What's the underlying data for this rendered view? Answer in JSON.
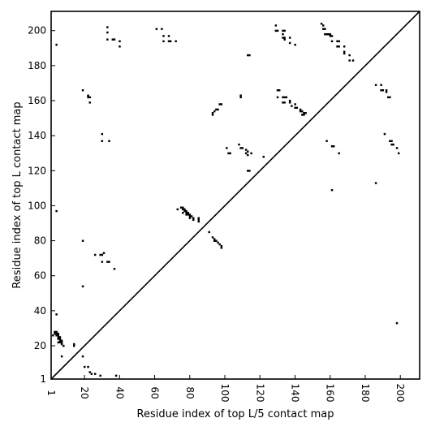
{
  "chart_data": {
    "type": "scatter",
    "title": "",
    "xlabel": "Residue index of top L/5 contact map",
    "ylabel": "Residue index of top L contact map",
    "xlim": [
      1,
      211
    ],
    "ylim": [
      1,
      211
    ],
    "x_ticks": [
      {
        "value": 1,
        "label": "1"
      },
      {
        "value": 20,
        "label": "20"
      },
      {
        "value": 40,
        "label": "40"
      },
      {
        "value": 60,
        "label": "60"
      },
      {
        "value": 80,
        "label": "80"
      },
      {
        "value": 100,
        "label": "100"
      },
      {
        "value": 120,
        "label": "120"
      },
      {
        "value": 140,
        "label": "140"
      },
      {
        "value": 160,
        "label": "160"
      },
      {
        "value": 180,
        "label": "180"
      },
      {
        "value": 200,
        "label": "200"
      }
    ],
    "y_ticks": [
      {
        "value": 1,
        "label": "1"
      },
      {
        "value": 20,
        "label": "20"
      },
      {
        "value": 40,
        "label": "40"
      },
      {
        "value": 60,
        "label": "60"
      },
      {
        "value": 80,
        "label": "80"
      },
      {
        "value": 100,
        "label": "100"
      },
      {
        "value": 120,
        "label": "120"
      },
      {
        "value": 140,
        "label": "140"
      },
      {
        "value": 160,
        "label": "160"
      },
      {
        "value": 180,
        "label": "180"
      },
      {
        "value": 200,
        "label": "200"
      }
    ],
    "grid": false,
    "diagonal": true,
    "marker_color": "#000000",
    "points": [
      [
        3,
        28
      ],
      [
        3,
        27
      ],
      [
        4,
        28
      ],
      [
        4,
        27
      ],
      [
        5,
        27
      ],
      [
        4,
        26
      ],
      [
        5,
        26
      ],
      [
        5,
        25
      ],
      [
        6,
        25
      ],
      [
        5,
        24
      ],
      [
        6,
        24
      ],
      [
        6,
        23
      ],
      [
        7,
        23
      ],
      [
        5,
        22
      ],
      [
        6,
        22
      ],
      [
        7,
        22
      ],
      [
        7,
        21
      ],
      [
        8,
        20
      ],
      [
        2,
        26
      ],
      [
        4,
        38
      ],
      [
        7,
        14
      ],
      [
        14,
        20
      ],
      [
        14,
        21
      ],
      [
        4,
        97
      ],
      [
        4,
        192
      ],
      [
        19,
        80
      ],
      [
        19,
        54
      ],
      [
        19,
        14
      ],
      [
        20,
        8
      ],
      [
        22,
        8
      ],
      [
        23,
        5
      ],
      [
        24,
        4
      ],
      [
        26,
        4
      ],
      [
        29,
        3
      ],
      [
        38,
        3
      ],
      [
        22,
        163
      ],
      [
        22,
        162
      ],
      [
        23,
        162
      ],
      [
        23,
        159
      ],
      [
        19,
        166
      ],
      [
        26,
        72
      ],
      [
        29,
        72
      ],
      [
        30,
        72
      ],
      [
        31,
        73
      ],
      [
        30,
        68
      ],
      [
        33,
        68
      ],
      [
        34,
        68
      ],
      [
        37,
        64
      ],
      [
        30,
        141
      ],
      [
        30,
        137
      ],
      [
        34,
        137
      ],
      [
        33,
        202
      ],
      [
        33,
        199
      ],
      [
        33,
        195
      ],
      [
        36,
        195
      ],
      [
        37,
        195
      ],
      [
        40,
        194
      ],
      [
        40,
        191
      ],
      [
        61,
        201
      ],
      [
        64,
        201
      ],
      [
        65,
        197
      ],
      [
        65,
        194
      ],
      [
        68,
        197
      ],
      [
        68,
        194
      ],
      [
        69,
        194
      ],
      [
        72,
        194
      ],
      [
        73,
        98
      ],
      [
        75,
        99
      ],
      [
        76,
        99
      ],
      [
        76,
        98
      ],
      [
        77,
        98
      ],
      [
        77,
        97
      ],
      [
        78,
        97
      ],
      [
        78,
        96
      ],
      [
        79,
        96
      ],
      [
        79,
        95
      ],
      [
        80,
        95
      ],
      [
        80,
        94
      ],
      [
        81,
        94
      ],
      [
        82,
        93
      ],
      [
        82,
        92
      ],
      [
        85,
        93
      ],
      [
        85,
        92
      ],
      [
        85,
        91
      ],
      [
        76,
        96
      ],
      [
        80,
        93
      ],
      [
        78,
        95
      ],
      [
        91,
        85
      ],
      [
        93,
        82
      ],
      [
        94,
        81
      ],
      [
        94,
        80
      ],
      [
        95,
        80
      ],
      [
        96,
        79
      ],
      [
        97,
        78
      ],
      [
        98,
        77
      ],
      [
        98,
        76
      ],
      [
        93,
        153
      ],
      [
        93,
        152
      ],
      [
        94,
        154
      ],
      [
        95,
        155
      ],
      [
        96,
        155
      ],
      [
        97,
        158
      ],
      [
        98,
        158
      ],
      [
        101,
        133
      ],
      [
        102,
        130
      ],
      [
        103,
        130
      ],
      [
        108,
        135
      ],
      [
        109,
        133
      ],
      [
        110,
        133
      ],
      [
        109,
        162
      ],
      [
        109,
        163
      ],
      [
        112,
        132
      ],
      [
        112,
        130
      ],
      [
        113,
        131
      ],
      [
        113,
        129
      ],
      [
        115,
        130
      ],
      [
        113,
        120
      ],
      [
        114,
        120
      ],
      [
        122,
        128
      ],
      [
        113,
        186
      ],
      [
        114,
        186
      ],
      [
        129,
        203
      ],
      [
        129,
        200
      ],
      [
        130,
        200
      ],
      [
        130,
        166
      ],
      [
        131,
        166
      ],
      [
        130,
        162
      ],
      [
        133,
        200
      ],
      [
        134,
        200
      ],
      [
        133,
        198
      ],
      [
        133,
        196
      ],
      [
        134,
        196
      ],
      [
        134,
        195
      ],
      [
        137,
        196
      ],
      [
        137,
        193
      ],
      [
        140,
        192
      ],
      [
        133,
        162
      ],
      [
        134,
        162
      ],
      [
        135,
        162
      ],
      [
        133,
        159
      ],
      [
        134,
        159
      ],
      [
        137,
        160
      ],
      [
        137,
        159
      ],
      [
        138,
        157
      ],
      [
        140,
        158
      ],
      [
        140,
        156
      ],
      [
        141,
        156
      ],
      [
        143,
        155
      ],
      [
        143,
        154
      ],
      [
        144,
        154
      ],
      [
        144,
        152
      ],
      [
        145,
        153
      ],
      [
        146,
        153
      ],
      [
        145,
        152
      ],
      [
        155,
        204
      ],
      [
        156,
        203
      ],
      [
        156,
        201
      ],
      [
        157,
        201
      ],
      [
        157,
        198
      ],
      [
        158,
        198
      ],
      [
        159,
        198
      ],
      [
        160,
        198
      ],
      [
        160,
        197
      ],
      [
        161,
        197
      ],
      [
        161,
        194
      ],
      [
        164,
        194
      ],
      [
        165,
        194
      ],
      [
        164,
        191
      ],
      [
        165,
        191
      ],
      [
        168,
        191
      ],
      [
        168,
        188
      ],
      [
        168,
        187
      ],
      [
        171,
        186
      ],
      [
        171,
        183
      ],
      [
        173,
        183
      ],
      [
        158,
        137
      ],
      [
        161,
        134
      ],
      [
        162,
        134
      ],
      [
        165,
        130
      ],
      [
        161,
        109
      ],
      [
        186,
        169
      ],
      [
        189,
        169
      ],
      [
        189,
        166
      ],
      [
        190,
        166
      ],
      [
        192,
        166
      ],
      [
        192,
        165
      ],
      [
        193,
        162
      ],
      [
        194,
        162
      ],
      [
        191,
        141
      ],
      [
        194,
        137
      ],
      [
        195,
        137
      ],
      [
        195,
        135
      ],
      [
        196,
        135
      ],
      [
        198,
        133
      ],
      [
        199,
        130
      ],
      [
        186,
        113
      ],
      [
        198,
        33
      ]
    ]
  }
}
